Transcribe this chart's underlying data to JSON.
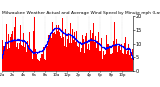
{
  "title": "Milwaukee Weather Actual and Average Wind Speed by Minute mph (Last 24 Hours)",
  "n_points": 1440,
  "bar_color": "#FF0000",
  "avg_color": "#0000FF",
  "background_color": "#FFFFFF",
  "plot_bg_color": "#FFFFFF",
  "ylim": [
    0,
    20
  ],
  "yticks": [
    0,
    5,
    10,
    15,
    20
  ],
  "ylabel_fontsize": 3.5,
  "title_fontsize": 3.2,
  "grid_color": "#BBBBBB",
  "seed": 99
}
